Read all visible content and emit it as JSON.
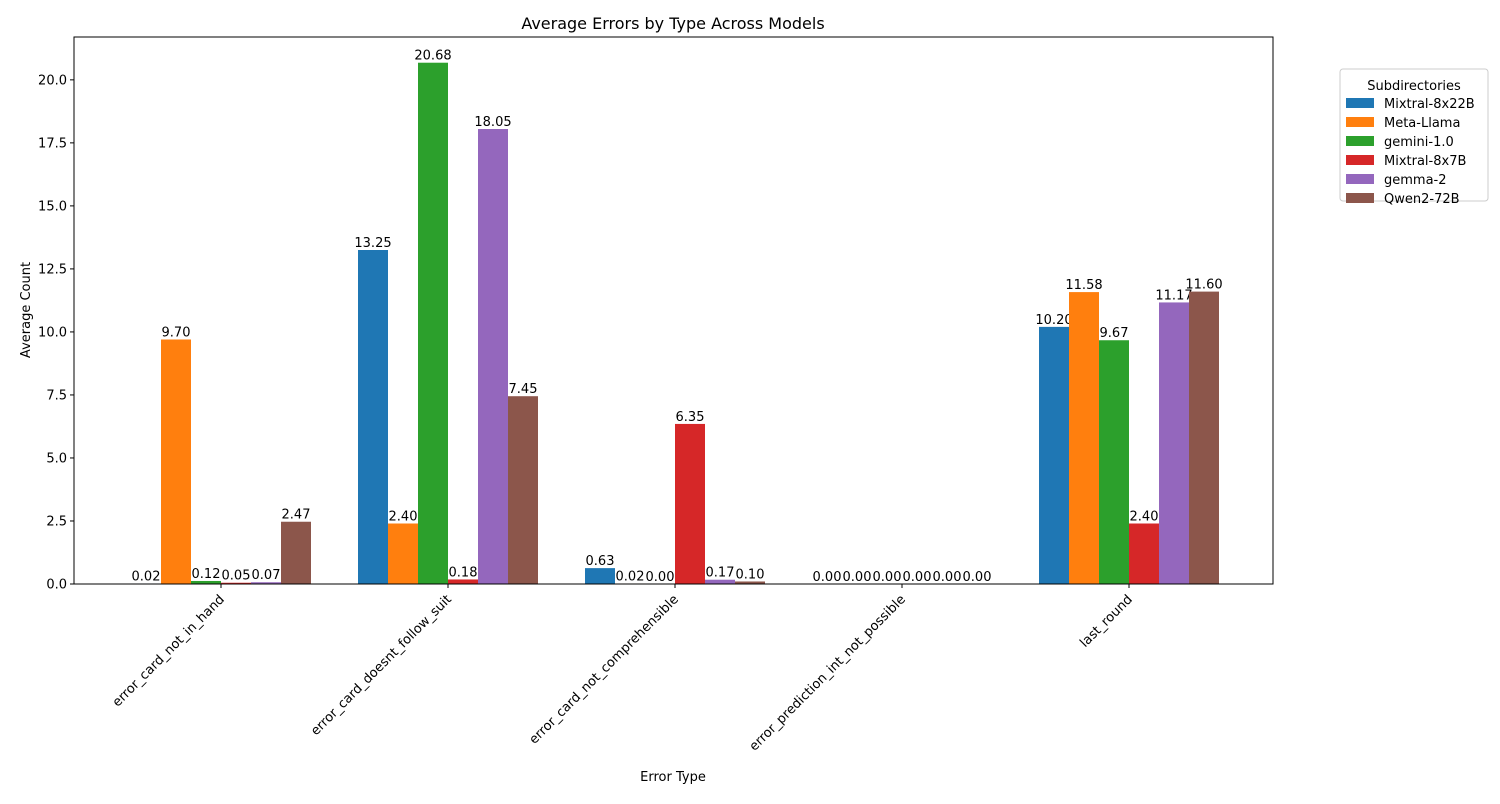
{
  "chart_data": {
    "type": "bar",
    "title": "Average Errors by Type Across Models",
    "xlabel": "Error Type",
    "ylabel": "Average Count",
    "ylim": [
      0,
      21.7
    ],
    "yticks": [
      "0.0",
      "2.5",
      "5.0",
      "7.5",
      "10.0",
      "12.5",
      "15.0",
      "17.5",
      "20.0"
    ],
    "categories": [
      "error_card_not_in_hand",
      "error_card_doesnt_follow_suit",
      "error_card_not_comprehensible",
      "error_prediction_int_not_possible",
      "last_round"
    ],
    "legend": {
      "title": "Subdirectories",
      "placement": "outside-top-right"
    },
    "grid": false,
    "series": [
      {
        "name": "Mixtral-8x22B",
        "color": "#1f77b4",
        "values": [
          0.02,
          13.25,
          0.63,
          0.0,
          10.2
        ],
        "labels": [
          "0.02",
          "13.25",
          "0.63",
          "0.00",
          "10.20"
        ]
      },
      {
        "name": "Meta-Llama",
        "color": "#ff7f0e",
        "values": [
          9.7,
          2.4,
          0.02,
          0.0,
          11.58
        ],
        "labels": [
          "9.70",
          "2.40",
          "0.02",
          "0.00",
          "11.58"
        ]
      },
      {
        "name": "gemini-1.0",
        "color": "#2ca02c",
        "values": [
          0.12,
          20.68,
          0.0,
          0.0,
          9.67
        ],
        "labels": [
          "0.12",
          "20.68",
          "0.00",
          "0.00",
          "9.67"
        ]
      },
      {
        "name": "Mixtral-8x7B",
        "color": "#d62728",
        "values": [
          0.05,
          0.18,
          6.35,
          0.0,
          2.4
        ],
        "labels": [
          "0.05",
          "0.18",
          "6.35",
          "0.00",
          "2.40"
        ]
      },
      {
        "name": "gemma-2",
        "color": "#9467bd",
        "values": [
          0.07,
          18.05,
          0.17,
          0.0,
          11.17
        ],
        "labels": [
          "0.07",
          "18.05",
          "0.17",
          "0.00",
          "11.17"
        ]
      },
      {
        "name": "Qwen2-72B",
        "color": "#8c564b",
        "values": [
          2.47,
          7.45,
          0.1,
          0.0,
          11.6
        ],
        "labels": [
          "2.47",
          "7.45",
          "0.10",
          "0.00",
          "11.60"
        ]
      }
    ]
  }
}
